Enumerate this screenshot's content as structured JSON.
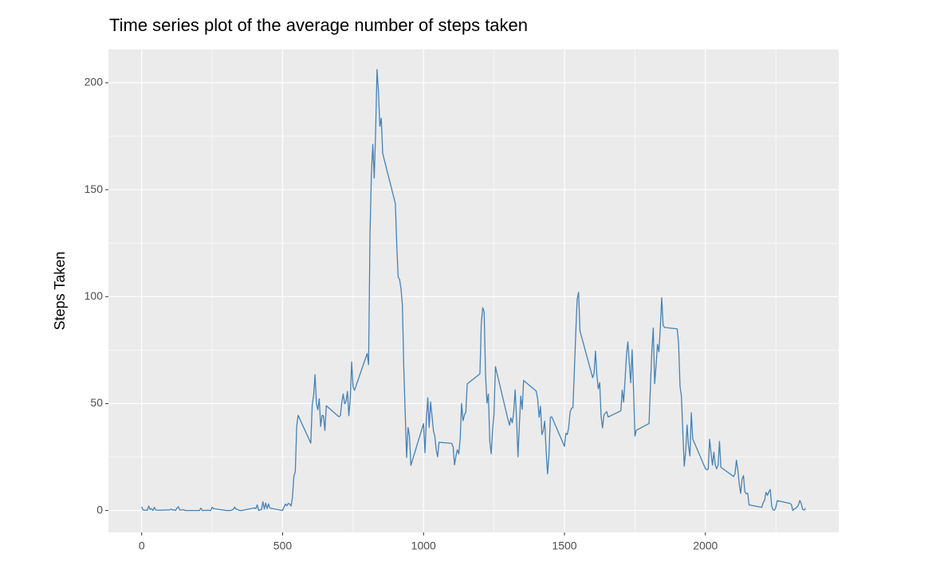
{
  "chart_data": {
    "type": "line",
    "title": "Time series plot of the average number of steps taken",
    "y_label": "Steps Taken",
    "color": "#4682b4",
    "grid": true,
    "xlim": [
      -118,
      2473
    ],
    "ylim": [
      -10.2,
      215.6
    ],
    "xticks": [
      0,
      500,
      1000,
      1500,
      2000
    ],
    "yticks": [
      0,
      50,
      100,
      150,
      200
    ],
    "xminor": [
      250,
      750,
      1250,
      1750,
      2250
    ],
    "yminor": [
      25,
      75,
      125,
      175
    ],
    "x": [
      0,
      5,
      10,
      15,
      20,
      25,
      30,
      35,
      40,
      45,
      50,
      55,
      100,
      105,
      110,
      115,
      120,
      125,
      130,
      135,
      140,
      145,
      150,
      155,
      200,
      205,
      210,
      215,
      220,
      225,
      230,
      235,
      240,
      245,
      250,
      255,
      300,
      305,
      310,
      315,
      320,
      325,
      330,
      335,
      340,
      345,
      350,
      355,
      400,
      405,
      410,
      415,
      420,
      425,
      430,
      435,
      440,
      445,
      450,
      455,
      500,
      505,
      510,
      515,
      520,
      525,
      530,
      535,
      540,
      545,
      550,
      555,
      600,
      605,
      610,
      615,
      620,
      625,
      630,
      635,
      640,
      645,
      650,
      655,
      700,
      705,
      710,
      715,
      720,
      725,
      730,
      735,
      740,
      745,
      750,
      755,
      800,
      805,
      810,
      815,
      820,
      825,
      830,
      835,
      840,
      845,
      850,
      855,
      900,
      905,
      910,
      915,
      920,
      925,
      930,
      935,
      940,
      945,
      950,
      955,
      1000,
      1005,
      1010,
      1015,
      1020,
      1025,
      1030,
      1035,
      1040,
      1045,
      1050,
      1055,
      1100,
      1105,
      1110,
      1115,
      1120,
      1125,
      1130,
      1135,
      1140,
      1145,
      1150,
      1155,
      1200,
      1205,
      1210,
      1215,
      1220,
      1225,
      1230,
      1235,
      1240,
      1245,
      1250,
      1255,
      1300,
      1305,
      1310,
      1315,
      1320,
      1325,
      1330,
      1335,
      1340,
      1345,
      1350,
      1355,
      1400,
      1405,
      1410,
      1415,
      1420,
      1425,
      1430,
      1435,
      1440,
      1445,
      1450,
      1455,
      1500,
      1505,
      1510,
      1515,
      1520,
      1525,
      1530,
      1535,
      1540,
      1545,
      1550,
      1555,
      1600,
      1605,
      1610,
      1615,
      1620,
      1625,
      1630,
      1635,
      1640,
      1645,
      1650,
      1655,
      1700,
      1705,
      1710,
      1715,
      1720,
      1725,
      1730,
      1735,
      1740,
      1745,
      1750,
      1755,
      1800,
      1805,
      1810,
      1815,
      1820,
      1825,
      1830,
      1835,
      1840,
      1845,
      1850,
      1855,
      1900,
      1905,
      1910,
      1915,
      1920,
      1925,
      1930,
      1935,
      1940,
      1945,
      1950,
      1955,
      2000,
      2005,
      2010,
      2015,
      2020,
      2025,
      2030,
      2035,
      2040,
      2045,
      2050,
      2055,
      2100,
      2105,
      2110,
      2115,
      2120,
      2125,
      2130,
      2135,
      2140,
      2145,
      2150,
      2155,
      2200,
      2205,
      2210,
      2215,
      2220,
      2225,
      2230,
      2235,
      2240,
      2245,
      2250,
      2255,
      2300,
      2305,
      2310,
      2315,
      2320,
      2325,
      2330,
      2335,
      2340,
      2345,
      2350,
      2355
    ],
    "values": [
      1.7,
      0.3,
      0.1,
      0.2,
      0.1,
      2.1,
      0.5,
      0.9,
      0,
      1.5,
      0.3,
      0.1,
      0.3,
      0.7,
      0.2,
      0.3,
      0,
      1.1,
      1.8,
      0.2,
      0.2,
      0.4,
      0.3,
      0,
      0,
      0,
      1.1,
      0,
      0,
      0.1,
      0,
      0.2,
      0,
      0,
      1.5,
      0.9,
      0,
      0,
      0,
      0,
      0.2,
      0.6,
      1.6,
      0.6,
      0.5,
      0.1,
      0,
      0,
      1.2,
      0.9,
      2.6,
      0,
      0.3,
      0.4,
      4.1,
      0.7,
      3.5,
      0.8,
      3.1,
      1.1,
      0,
      1.6,
      3,
      2.2,
      3.3,
      3,
      2.1,
      6.1,
      16,
      18.3,
      39.5,
      44.5,
      31.5,
      49.3,
      53.8,
      63.5,
      50,
      47.1,
      52.2,
      39.3,
      44.5,
      44.2,
      37.4,
      49,
      43.8,
      44.4,
      50.5,
      54.5,
      49.9,
      51,
      55.7,
      44.3,
      52.3,
      69.5,
      57.8,
      56.2,
      73.4,
      68.2,
      129.4,
      157.5,
      171.2,
      155.4,
      177.3,
      206.2,
      195.9,
      179.6,
      183.4,
      167,
      143.5,
      124,
      109.1,
      108.1,
      103.7,
      96,
      66.2,
      45.2,
      24.8,
      38.8,
      35,
      21.1,
      40.6,
      27,
      42.4,
      52.7,
      38.9,
      50.8,
      44.3,
      37.4,
      34.7,
      28.3,
      25.1,
      31.9,
      31.4,
      29.7,
      21.3,
      25.5,
      28.4,
      26.5,
      33.4,
      50,
      42,
      44.6,
      46,
      59.2,
      63.9,
      87.7,
      94.8,
      92.8,
      63.4,
      50.2,
      54.5,
      32.4,
      26.5,
      37.7,
      45.1,
      67.3,
      42.3,
      39.9,
      43.3,
      41,
      46.2,
      56.4,
      42.8,
      25.1,
      40,
      53.5,
      47.3,
      60.8,
      55.8,
      52,
      43.6,
      48.7,
      35.5,
      37.5,
      41.8,
      27.5,
      17.1,
      26.1,
      43.6,
      43.8,
      30,
      36.1,
      35.5,
      38.8,
      46,
      47.8,
      48.1,
      65.3,
      82.9,
      98.7,
      102.1,
      84,
      62.1,
      64.1,
      74.5,
      63.2,
      56.9,
      59.8,
      43.9,
      38.6,
      44.7,
      45.5,
      46.2,
      43.7,
      46.6,
      56.3,
      50.7,
      61.2,
      72.7,
      78.9,
      68.9,
      59.7,
      75.1,
      56.5,
      34.8,
      37.5,
      40.7,
      58,
      74.7,
      85.3,
      59.3,
      67.8,
      77.7,
      74.2,
      85.3,
      99.5,
      86.6,
      85.6,
      84.9,
      77.8,
      58,
      53.4,
      36.3,
      20.7,
      27.4,
      40,
      30.2,
      25.5,
      45.7,
      33.5,
      19.6,
      19,
      19.3,
      33.3,
      26.8,
      21.2,
      27.3,
      21.3,
      19.5,
      21.3,
      32.3,
      20.2,
      15.9,
      17.2,
      23.5,
      19.2,
      12.5,
      8,
      14.7,
      16.3,
      8.7,
      7.8,
      8.1,
      2.6,
      1.5,
      3.7,
      4.8,
      8.5,
      7.1,
      8.7,
      9.8,
      2.2,
      0.3,
      0.1,
      1.6,
      4.6,
      3.3,
      2.8,
      0,
      0.8,
      1,
      1.6,
      2.6,
      4.7,
      3.3,
      0.6,
      0.2,
      1.1
    ]
  }
}
